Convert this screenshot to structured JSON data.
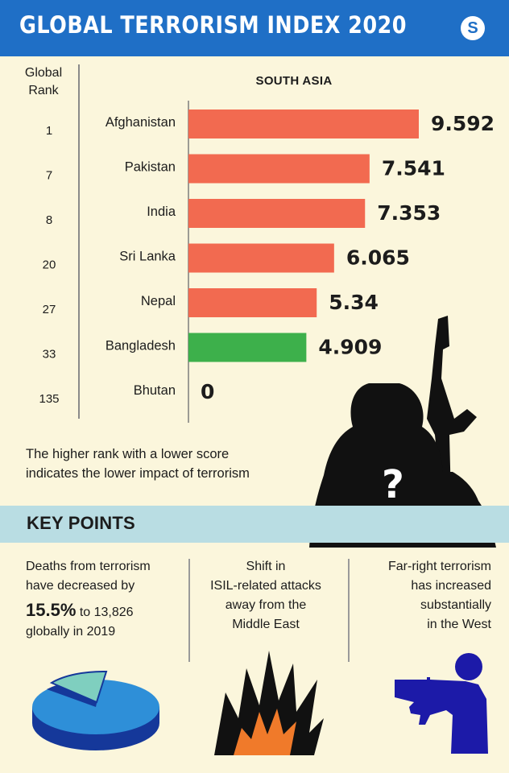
{
  "header": {
    "title": "GLOBAL TERRORISM INDEX 2020",
    "logo_letter": "S"
  },
  "rank_header": {
    "line1": "Global",
    "line2": "Rank"
  },
  "chart_data": {
    "type": "bar",
    "orientation": "horizontal",
    "title": "SOUTH ASIA",
    "categories": [
      "Afghanistan",
      "Pakistan",
      "India",
      "Sri Lanka",
      "Nepal",
      "Bangladesh",
      "Bhutan"
    ],
    "ranks": [
      "1",
      "7",
      "8",
      "20",
      "27",
      "33",
      "135"
    ],
    "values": [
      9.592,
      7.541,
      7.353,
      6.065,
      5.34,
      4.909,
      0
    ],
    "value_labels": [
      "9.592",
      "7.541",
      "7.353",
      "6.065",
      "5.34",
      "4.909",
      "0"
    ],
    "xlim": [
      0,
      10
    ],
    "colors": [
      "#f26a50",
      "#f26a50",
      "#f26a50",
      "#f26a50",
      "#f26a50",
      "#3db04b",
      "#f26a50"
    ],
    "grid": false
  },
  "note": {
    "line1": "The higher rank with a lower score",
    "line2": "indicates the lower impact of terrorism"
  },
  "key_points": {
    "title": "KEY POINTS",
    "col1": {
      "line1": "Deaths from terrorism",
      "line2": "have decreased by",
      "big": "15.5%",
      "rest": " to 13,826",
      "line4": "globally in 2019"
    },
    "col2": {
      "line1": "Shift in",
      "line2": "ISIL-related attacks",
      "line3": "away from the",
      "line4": "Middle East"
    },
    "col3": {
      "line1": "Far-right terrorism",
      "line2": "has increased",
      "line3": "substantially",
      "line4": "in the West"
    }
  },
  "colors": {
    "header": "#1f6fc6",
    "background": "#fbf6dc",
    "band": "#b9dde3",
    "bar": "#f26a50",
    "highlight": "#3db04b"
  }
}
